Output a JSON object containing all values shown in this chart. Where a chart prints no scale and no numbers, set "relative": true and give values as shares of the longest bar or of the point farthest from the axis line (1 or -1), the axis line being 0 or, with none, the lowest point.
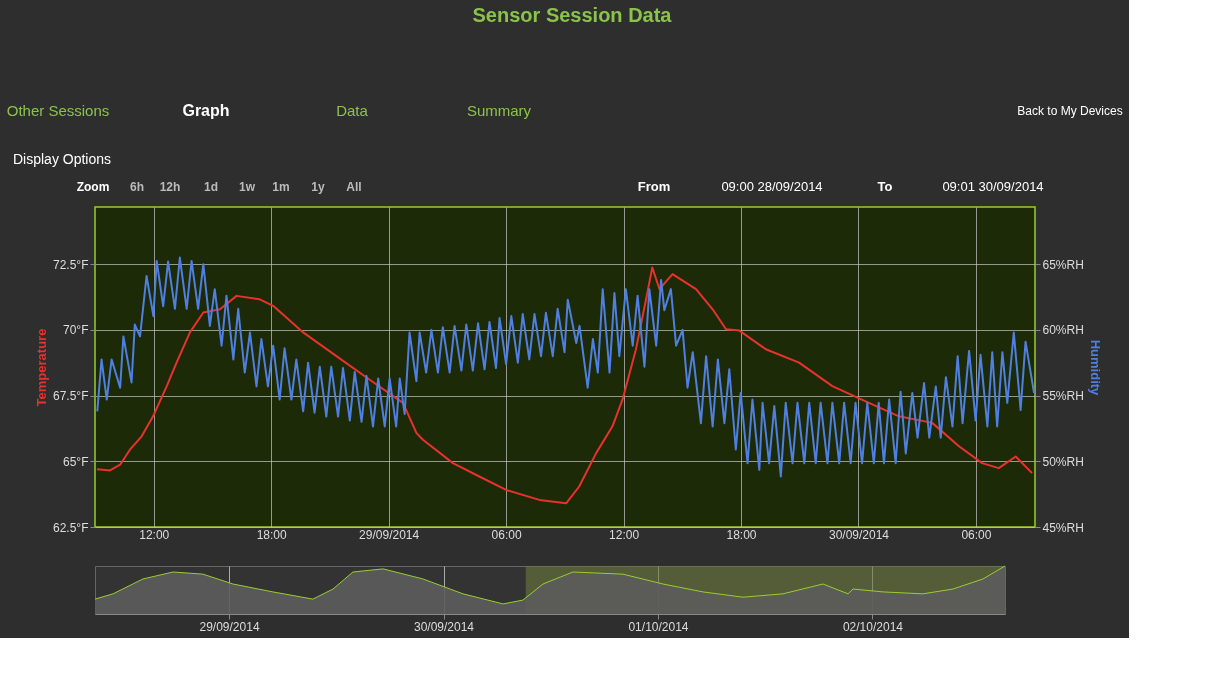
{
  "chart_data": [
    {
      "type": "line",
      "title": "Sensor Session Data",
      "ylabel": "Temperature",
      "y2label": "Humidity",
      "annotations": [
        "Other Sessions",
        "Graph",
        "Data",
        "Summary",
        "Back to My Devices",
        "Display Options",
        "Zoom",
        "6h",
        "12h",
        "1d",
        "1w",
        "1m",
        "1y",
        "All",
        "From",
        "09:00 28/09/2014",
        "To",
        "09:01 30/09/2014"
      ],
      "xlim": [
        "2014-09-28T09:00",
        "2014-09-30T09:01"
      ],
      "xticks": [
        {
          "value": "2014-09-28T12:00",
          "label": "12:00"
        },
        {
          "value": "2014-09-28T18:00",
          "label": "18:00"
        },
        {
          "value": "2014-09-29T00:00",
          "label": "29/09/2014"
        },
        {
          "value": "2014-09-29T06:00",
          "label": "06:00"
        },
        {
          "value": "2014-09-29T12:00",
          "label": "12:00"
        },
        {
          "value": "2014-09-29T18:00",
          "label": "18:00"
        },
        {
          "value": "2014-09-30T00:00",
          "label": "30/09/2014"
        },
        {
          "value": "2014-09-30T06:00",
          "label": "06:00"
        }
      ],
      "ylim": [
        62.5,
        74.67
      ],
      "yticks": [
        {
          "value": 62.5,
          "label": "62.5°F"
        },
        {
          "value": 65,
          "label": "65°F"
        },
        {
          "value": 67.5,
          "label": "67.5°F"
        },
        {
          "value": 70,
          "label": "70°F"
        },
        {
          "value": 72.5,
          "label": "72.5°F"
        }
      ],
      "y2lim": [
        45,
        69.35
      ],
      "y2ticks": [
        {
          "value": 45,
          "label": "45%RH"
        },
        {
          "value": 50,
          "label": "50%RH"
        },
        {
          "value": 55,
          "label": "55%RH"
        },
        {
          "value": 60,
          "label": "60%RH"
        },
        {
          "value": 65,
          "label": "65%RH"
        }
      ],
      "grid": true,
      "marker": "none",
      "line_style": "solid",
      "series": [
        {
          "color": "#e8322b",
          "x": [
            "2014-09-28T09:06",
            "2014-09-28T09:46",
            "2014-09-28T10:17",
            "2014-09-28T10:47",
            "2014-09-28T11:23",
            "2014-09-28T11:58",
            "2014-09-28T12:40",
            "2014-09-28T13:10",
            "2014-09-28T13:51",
            "2014-09-28T14:32",
            "2014-09-28T15:23",
            "2014-09-28T16:14",
            "2014-09-28T17:25",
            "2014-09-28T18:06",
            "2014-09-28T19:38",
            "2014-09-28T21:20",
            "2014-09-28T23:02",
            "2014-09-29T00:44",
            "2014-09-29T01:25",
            "2014-09-29T01:45",
            "2014-09-29T03:17",
            "2014-09-29T04:38",
            "2014-09-29T06:00",
            "2014-09-29T07:42",
            "2014-09-29T09:04",
            "2014-09-29T09:44",
            "2014-09-29T10:36",
            "2014-09-29T11:26",
            "2014-09-29T11:57",
            "2014-09-29T12:38",
            "2014-09-29T13:09",
            "2014-09-29T13:28",
            "2014-09-29T13:50",
            "2014-09-29T14:30",
            "2014-09-29T15:42",
            "2014-09-29T16:33",
            "2014-09-29T17:14",
            "2014-09-29T17:55",
            "2014-09-29T19:16",
            "2014-09-29T20:58",
            "2014-09-29T22:40",
            "2014-09-30T00:22",
            "2014-09-30T02:04",
            "2014-09-30T03:46",
            "2014-09-30T05:08",
            "2014-09-30T06:19",
            "2014-09-30T07:10",
            "2014-09-30T08:02",
            "2014-09-30T08:52"
          ],
          "values": [
            64.7,
            64.65,
            64.87,
            65.44,
            65.95,
            66.71,
            67.86,
            68.75,
            69.9,
            70.66,
            70.78,
            71.29,
            71.16,
            70.91,
            69.9,
            69.0,
            68.1,
            67.22,
            66.08,
            65.82,
            64.93,
            64.42,
            63.91,
            63.53,
            63.4,
            64.04,
            65.31,
            66.33,
            67.35,
            69.26,
            71.16,
            72.37,
            71.55,
            72.12,
            71.55,
            70.78,
            70.02,
            69.97,
            69.26,
            68.75,
            67.86,
            67.28,
            66.71,
            66.46,
            65.57,
            64.93,
            64.74,
            65.18,
            64.55
          ]
        },
        {
          "color": "#4f7fe0",
          "axis": "y2",
          "x": [
            "2014-09-28T09:07",
            "2014-09-28T09:20",
            "2014-09-28T09:36",
            "2014-09-28T09:51",
            "2014-09-28T10:17",
            "2014-09-28T10:27",
            "2014-09-28T10:52",
            "2014-09-28T11:02",
            "2014-09-28T11:18",
            "2014-09-28T11:38",
            "2014-09-28T11:59",
            "2014-09-28T12:09",
            "2014-09-28T12:29",
            "2014-09-28T12:44",
            "2014-09-28T13:05",
            "2014-09-28T13:20",
            "2014-09-28T13:41",
            "2014-09-28T13:56",
            "2014-09-28T14:16",
            "2014-09-28T14:32",
            "2014-09-28T14:52",
            "2014-09-28T15:07",
            "2014-09-28T15:28",
            "2014-09-28T15:43",
            "2014-09-28T16:04",
            "2014-09-28T16:19",
            "2014-09-28T16:39",
            "2014-09-28T16:55",
            "2014-09-28T17:15",
            "2014-09-28T17:30",
            "2014-09-28T17:50",
            "2014-09-28T18:06",
            "2014-09-28T18:26",
            "2014-09-28T18:41",
            "2014-09-28T19:02",
            "2014-09-28T19:17",
            "2014-09-28T19:38",
            "2014-09-28T19:53",
            "2014-09-28T20:13",
            "2014-09-28T20:29",
            "2014-09-28T20:49",
            "2014-09-28T21:04",
            "2014-09-28T21:25",
            "2014-09-28T21:40",
            "2014-09-28T22:01",
            "2014-09-28T22:16",
            "2014-09-28T22:37",
            "2014-09-28T22:52",
            "2014-09-28T23:12",
            "2014-09-28T23:28",
            "2014-09-28T23:48",
            "2014-09-29T00:03",
            "2014-09-29T00:23",
            "2014-09-29T00:34",
            "2014-09-29T00:49",
            "2014-09-29T01:04",
            "2014-09-29T01:25",
            "2014-09-29T01:35",
            "2014-09-29T01:55",
            "2014-09-29T02:11",
            "2014-09-29T02:31",
            "2014-09-29T02:46",
            "2014-09-29T03:07",
            "2014-09-29T03:22",
            "2014-09-29T03:43",
            "2014-09-29T03:58",
            "2014-09-29T04:18",
            "2014-09-29T04:34",
            "2014-09-29T04:54",
            "2014-09-29T05:09",
            "2014-09-29T05:29",
            "2014-09-29T05:40",
            "2014-09-29T06:00",
            "2014-09-29T06:16",
            "2014-09-29T06:36",
            "2014-09-29T06:51",
            "2014-09-29T07:11",
            "2014-09-29T07:27",
            "2014-09-29T07:47",
            "2014-09-29T08:02",
            "2014-09-29T08:23",
            "2014-09-29T08:38",
            "2014-09-29T08:59",
            "2014-09-29T09:09",
            "2014-09-29T09:35",
            "2014-09-29T09:45",
            "2014-09-29T10:10",
            "2014-09-29T10:26",
            "2014-09-29T10:41",
            "2014-09-29T10:56",
            "2014-09-29T11:17",
            "2014-09-29T11:32",
            "2014-09-29T11:47",
            "2014-09-29T12:07",
            "2014-09-29T12:28",
            "2014-09-29T12:43",
            "2014-09-29T13:04",
            "2014-09-29T13:19",
            "2014-09-29T13:40",
            "2014-09-29T13:55",
            "2014-09-29T14:05",
            "2014-09-29T14:25",
            "2014-09-29T14:41",
            "2014-09-29T15:01",
            "2014-09-29T15:16",
            "2014-09-29T15:32",
            "2014-09-29T15:57",
            "2014-09-29T16:13",
            "2014-09-29T16:33",
            "2014-09-29T16:49",
            "2014-09-29T17:09",
            "2014-09-29T17:24",
            "2014-09-29T17:44",
            "2014-09-29T17:59",
            "2014-09-29T18:20",
            "2014-09-29T18:35",
            "2014-09-29T18:56",
            "2014-09-29T19:06",
            "2014-09-29T19:26",
            "2014-09-29T19:42",
            "2014-09-29T20:02",
            "2014-09-29T20:17",
            "2014-09-29T20:38",
            "2014-09-29T20:53",
            "2014-09-29T21:14",
            "2014-09-29T21:29",
            "2014-09-29T21:49",
            "2014-09-29T22:04",
            "2014-09-29T22:25",
            "2014-09-29T22:40",
            "2014-09-29T23:01",
            "2014-09-29T23:16",
            "2014-09-29T23:36",
            "2014-09-29T23:51",
            "2014-09-30T00:11",
            "2014-09-30T00:27",
            "2014-09-30T00:47",
            "2014-09-30T01:02",
            "2014-09-30T01:18",
            "2014-09-30T01:34",
            "2014-09-30T01:54",
            "2014-09-30T02:09",
            "2014-09-30T02:25",
            "2014-09-30T02:45",
            "2014-09-30T03:01",
            "2014-09-30T03:21",
            "2014-09-30T03:37",
            "2014-09-30T03:57",
            "2014-09-30T04:12",
            "2014-09-30T04:28",
            "2014-09-30T04:48",
            "2014-09-30T05:04",
            "2014-09-30T05:19",
            "2014-09-30T05:39",
            "2014-09-30T05:59",
            "2014-09-30T06:14",
            "2014-09-30T06:35",
            "2014-09-30T06:50",
            "2014-09-30T07:05",
            "2014-09-30T07:21",
            "2014-09-30T07:36",
            "2014-09-30T07:56",
            "2014-09-30T08:17",
            "2014-09-30T08:32",
            "2014-09-30T08:58"
          ],
          "values": [
            53.8,
            57.75,
            54.7,
            57.75,
            55.6,
            59.5,
            56.0,
            60.4,
            59.5,
            64.1,
            61.05,
            65.25,
            61.8,
            65.2,
            61.6,
            65.5,
            61.6,
            65.25,
            61.6,
            65.0,
            60.3,
            63.1,
            58.8,
            62.6,
            57.75,
            61.6,
            56.75,
            59.8,
            55.7,
            59.3,
            55.7,
            58.8,
            54.7,
            58.6,
            54.7,
            57.75,
            53.8,
            57.5,
            53.7,
            57.2,
            53.4,
            57.2,
            53.4,
            57.1,
            53.1,
            56.8,
            53.0,
            56.5,
            52.65,
            56.3,
            52.65,
            56.3,
            52.65,
            56.3,
            53.6,
            59.8,
            56.1,
            59.8,
            56.75,
            60.0,
            56.75,
            60.2,
            56.75,
            60.3,
            56.9,
            60.4,
            56.9,
            60.5,
            57.0,
            60.6,
            57.1,
            60.9,
            57.4,
            61.05,
            57.5,
            61.2,
            57.75,
            61.2,
            58.0,
            61.3,
            58.0,
            61.6,
            58.3,
            62.3,
            59.0,
            60.3,
            55.6,
            59.3,
            56.75,
            63.1,
            56.75,
            62.8,
            58.0,
            63.1,
            58.8,
            62.6,
            57.2,
            63.1,
            58.8,
            63.8,
            61.5,
            63.1,
            58.8,
            60.0,
            55.6,
            58.3,
            52.9,
            58.0,
            52.65,
            57.75,
            52.9,
            57.0,
            50.9,
            55.2,
            49.85,
            54.7,
            49.35,
            54.45,
            49.85,
            54.2,
            48.85,
            54.45,
            49.85,
            54.45,
            49.85,
            54.45,
            49.85,
            54.45,
            49.85,
            54.45,
            49.85,
            54.45,
            49.85,
            54.45,
            49.85,
            54.45,
            49.85,
            54.45,
            49.85,
            54.7,
            49.85,
            55.3,
            50.6,
            55.2,
            51.8,
            55.95,
            51.8,
            55.7,
            51.8,
            56.4,
            52.65,
            58.0,
            52.9,
            58.4,
            53.1,
            58.1,
            52.65,
            58.3,
            52.65,
            58.3,
            54.45,
            59.8,
            53.9,
            59.1,
            55.2
          ]
        }
      ]
    },
    {
      "type": "area",
      "relative": true,
      "color": "#5c5c5c",
      "grid": "x",
      "tick_labels": "x",
      "xlim": [
        "2014-09-28T09:00",
        "2014-10-02T14:50"
      ],
      "xticks": [
        {
          "value": "2014-09-29T00:00",
          "label": "29/09/2014"
        },
        {
          "value": "2014-09-30T00:00",
          "label": "30/09/2014"
        },
        {
          "value": "2014-10-01T00:00",
          "label": "01/10/2014"
        },
        {
          "value": "2014-10-02T00:00",
          "label": "02/10/2014"
        }
      ],
      "x": [
        "2014-09-28T09:00",
        "2014-09-28T11:01",
        "2014-09-28T14:22",
        "2014-09-28T17:44",
        "2014-09-28T21:05",
        "2014-09-29T00:26",
        "2014-09-29T04:55",
        "2014-09-29T09:23",
        "2014-09-29T11:38",
        "2014-09-29T13:52",
        "2014-09-29T17:14",
        "2014-09-29T21:42",
        "2014-09-30T02:11",
        "2014-09-30T06:40",
        "2014-09-30T08:53",
        "2014-09-30T11:08",
        "2014-09-30T14:29",
        "2014-09-30T20:05",
        "2014-10-01T00:34",
        "2014-10-01T05:02",
        "2014-10-01T09:31",
        "2014-10-01T13:59",
        "2014-10-01T18:28",
        "2014-10-01T21:16",
        "2014-10-01T21:49",
        "2014-10-02T01:11",
        "2014-10-02T05:39",
        "2014-10-02T09:01",
        "2014-10-02T12:22",
        "2014-10-02T14:50"
      ],
      "values": [
        0.31,
        0.42,
        0.73,
        0.875,
        0.83,
        0.625,
        0.46,
        0.31,
        0.52,
        0.875,
        0.94,
        0.73,
        0.42,
        0.21,
        0.29,
        0.625,
        0.875,
        0.83,
        0.625,
        0.46,
        0.35,
        0.42,
        0.625,
        0.42,
        0.52,
        0.46,
        0.42,
        0.52,
        0.73,
        1.0
      ],
      "bands": [
        {
          "axis": "x",
          "from": "2014-09-30T09:12",
          "to": "2014-10-02T14:50",
          "color": "#6b7a3a"
        }
      ]
    }
  ]
}
